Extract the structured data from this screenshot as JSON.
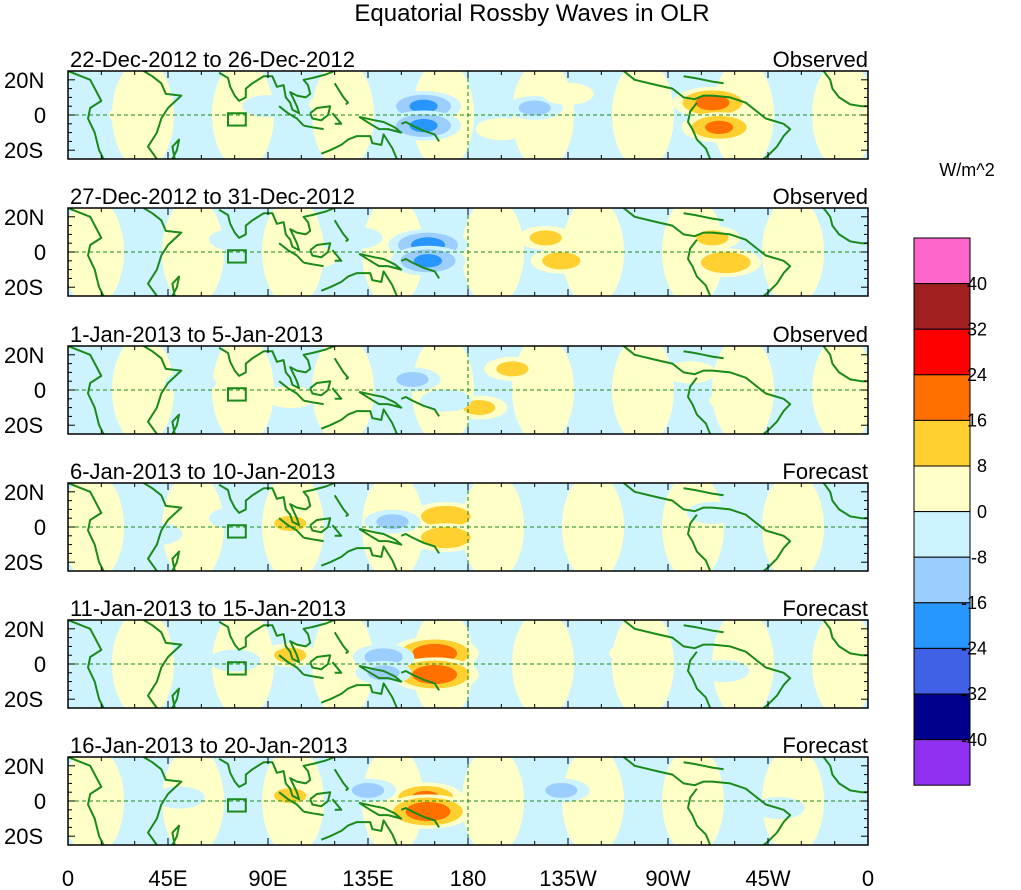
{
  "chart_data": {
    "type": "heatmap",
    "title": "Equatorial Rossby Waves in OLR",
    "x_tick_labels": [
      "0",
      "45E",
      "90E",
      "135E",
      "180",
      "135W",
      "90W",
      "45W",
      "0"
    ],
    "x_tick_longitudes": [
      0,
      45,
      90,
      135,
      180,
      225,
      270,
      315,
      360
    ],
    "y_tick_labels": [
      "20N",
      "0",
      "20S"
    ],
    "y_tick_latitudes": [
      20,
      0,
      -20
    ],
    "xlim": [
      0,
      360
    ],
    "ylim": [
      -25,
      25
    ],
    "colorbar": {
      "units": "W/m^2",
      "levels": [
        40,
        32,
        24,
        16,
        8,
        0,
        -8,
        -16,
        -24,
        -32,
        -40
      ],
      "colors": [
        "#ff66cc",
        "#a02020",
        "#ff0000",
        "#ff7000",
        "#ffd030",
        "#ffffc8",
        "#cdf3ff",
        "#9ccdff",
        "#2896ff",
        "#4060e6",
        "#00008c",
        "#9030f0"
      ]
    },
    "panels": [
      {
        "period": "22-Dec-2012 to 26-Dec-2012",
        "kind": "Observed",
        "features": [
          {
            "lon": 290,
            "lat": 7,
            "value": 20
          },
          {
            "lon": 293,
            "lat": -7,
            "value": 18
          },
          {
            "lon": 160,
            "lat": 5,
            "value": -18
          },
          {
            "lon": 160,
            "lat": -6,
            "value": -18
          },
          {
            "lon": 210,
            "lat": 4,
            "value": -10
          },
          {
            "lon": 225,
            "lat": 12,
            "value": 8
          },
          {
            "lon": 195,
            "lat": -8,
            "value": 8
          },
          {
            "lon": 120,
            "lat": 6,
            "value": 8
          },
          {
            "lon": 90,
            "lat": 5,
            "value": -8
          },
          {
            "lon": 30,
            "lat": 0,
            "value": 8
          }
        ]
      },
      {
        "period": "27-Dec-2012 to 31-Dec-2012",
        "kind": "Observed",
        "features": [
          {
            "lon": 162,
            "lat": 4,
            "value": -20
          },
          {
            "lon": 162,
            "lat": -5,
            "value": -18
          },
          {
            "lon": 130,
            "lat": 8,
            "value": -8
          },
          {
            "lon": 215,
            "lat": 8,
            "value": 10
          },
          {
            "lon": 222,
            "lat": -5,
            "value": 12
          },
          {
            "lon": 290,
            "lat": 8,
            "value": 10
          },
          {
            "lon": 296,
            "lat": -6,
            "value": 16
          },
          {
            "lon": 110,
            "lat": -3,
            "value": 8
          },
          {
            "lon": 75,
            "lat": 7,
            "value": -8
          }
        ]
      },
      {
        "period": "1-Jan-2013 to 5-Jan-2013",
        "kind": "Observed",
        "features": [
          {
            "lon": 200,
            "lat": 12,
            "value": 10
          },
          {
            "lon": 185,
            "lat": -10,
            "value": 10
          },
          {
            "lon": 155,
            "lat": 6,
            "value": -10
          },
          {
            "lon": 170,
            "lat": -6,
            "value": -8
          },
          {
            "lon": 55,
            "lat": 4,
            "value": -8
          },
          {
            "lon": 100,
            "lat": -4,
            "value": 8
          },
          {
            "lon": 280,
            "lat": 10,
            "value": 8
          },
          {
            "lon": 300,
            "lat": -6,
            "value": 8
          }
        ]
      },
      {
        "period": "6-Jan-2013 to 10-Jan-2013",
        "kind": "Forecast",
        "features": [
          {
            "lon": 170,
            "lat": 6,
            "value": 16
          },
          {
            "lon": 170,
            "lat": -6,
            "value": 16
          },
          {
            "lon": 146,
            "lat": 3,
            "value": -10
          },
          {
            "lon": 100,
            "lat": 2,
            "value": 10
          },
          {
            "lon": 75,
            "lat": 5,
            "value": -8
          },
          {
            "lon": 40,
            "lat": -4,
            "value": -8
          },
          {
            "lon": 290,
            "lat": 8,
            "value": -8
          }
        ]
      },
      {
        "period": "11-Jan-2013 to 15-Jan-2013",
        "kind": "Forecast",
        "features": [
          {
            "lon": 165,
            "lat": 6,
            "value": 24
          },
          {
            "lon": 165,
            "lat": -6,
            "value": 24
          },
          {
            "lon": 142,
            "lat": 4,
            "value": -12
          },
          {
            "lon": 142,
            "lat": -5,
            "value": -10
          },
          {
            "lon": 100,
            "lat": 5,
            "value": 10
          },
          {
            "lon": 75,
            "lat": 2,
            "value": -8
          },
          {
            "lon": 255,
            "lat": 6,
            "value": 8
          },
          {
            "lon": 295,
            "lat": -4,
            "value": -8
          }
        ]
      },
      {
        "period": "16-Jan-2013 to 20-Jan-2013",
        "kind": "Forecast",
        "features": [
          {
            "lon": 161,
            "lat": 2,
            "value": 18
          },
          {
            "lon": 162,
            "lat": -6,
            "value": 24
          },
          {
            "lon": 135,
            "lat": 6,
            "value": -10
          },
          {
            "lon": 100,
            "lat": 3,
            "value": 10
          },
          {
            "lon": 222,
            "lat": 6,
            "value": -10
          },
          {
            "lon": 50,
            "lat": 2,
            "value": -8
          },
          {
            "lon": 320,
            "lat": -4,
            "value": -8
          }
        ]
      }
    ]
  }
}
